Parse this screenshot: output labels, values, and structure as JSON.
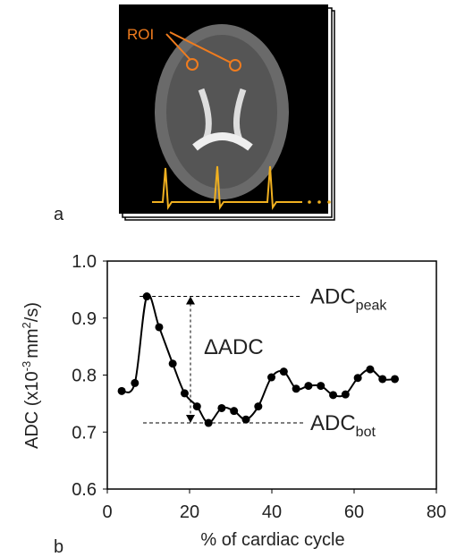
{
  "image": {
    "roi_label": "ROI",
    "panel_label": "a"
  },
  "chart_data": {
    "type": "line",
    "panel_label": "b",
    "x_label": "% of cardiac cycle",
    "y_label": {
      "main": "ADC (x10",
      "sup1": "-3",
      "mid": "mm",
      "sup2": "2",
      "end": "/s)"
    },
    "annotations": {
      "peak": {
        "text": "ADC",
        "sub": "peak"
      },
      "delta": "ΔADC",
      "bot": {
        "text": "ADC",
        "sub": "bot"
      }
    },
    "x": [
      3.5,
      6.7,
      9.6,
      12.6,
      15.9,
      18.8,
      21.8,
      24.6,
      27.8,
      30.8,
      33.7,
      36.7,
      39.9,
      42.9,
      45.9,
      48.9,
      51.9,
      54.9,
      57.9,
      60.9,
      63.9,
      66.9,
      69.9
    ],
    "values": [
      0.772,
      0.786,
      0.938,
      0.884,
      0.82,
      0.768,
      0.745,
      0.716,
      0.742,
      0.737,
      0.722,
      0.745,
      0.796,
      0.806,
      0.776,
      0.781,
      0.781,
      0.765,
      0.766,
      0.795,
      0.81,
      0.793,
      0.793
    ],
    "color": "#000000",
    "xlim": [
      0,
      80
    ],
    "xticks": [
      0,
      20,
      40,
      60,
      80
    ],
    "ylim": [
      0.6,
      1.0
    ],
    "yticks": [
      0.6,
      0.7,
      0.8,
      0.9,
      {
        "value": 1.0,
        "label": "1.0"
      }
    ]
  }
}
